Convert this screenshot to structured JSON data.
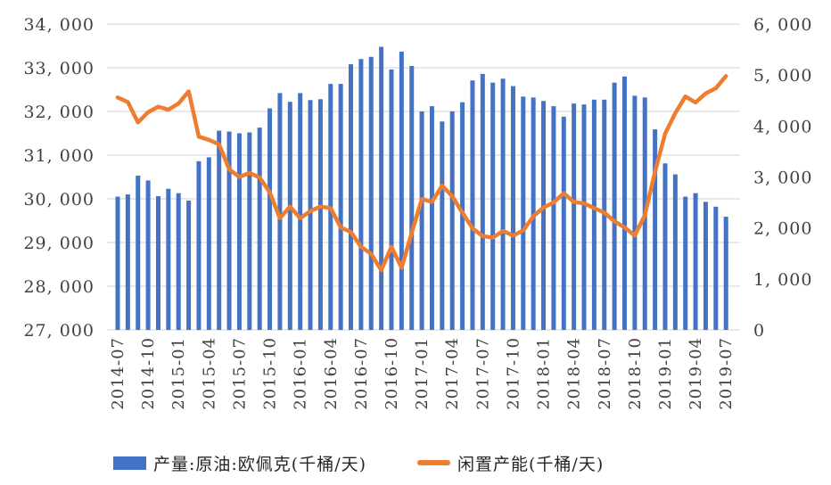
{
  "chart": {
    "colors": {
      "bar": "#4472C4",
      "line": "#ED7D31",
      "gridline": "#D9D9D9",
      "axis_text": "#404040"
    },
    "left_axis_tick_labels": [
      "34, 000",
      "33, 000",
      "32, 000",
      "31, 000",
      "30, 000",
      "29, 000",
      "28, 000",
      "27, 000"
    ],
    "right_axis_tick_labels": [
      "6, 000",
      "5, 000",
      "4, 000",
      "3, 000",
      "2, 000",
      "1, 000",
      "0"
    ],
    "x_axis_tick_labels": [
      "2014-07",
      "2014-10",
      "2015-01",
      "2015-04",
      "2015-07",
      "2015-10",
      "2016-01",
      "2016-04",
      "2016-07",
      "2016-10",
      "2017-01",
      "2017-04",
      "2017-07",
      "2017-10",
      "2018-01",
      "2018-04",
      "2018-07",
      "2018-10",
      "2019-01",
      "2019-04",
      "2019-07"
    ],
    "legend": {
      "items": [
        {
          "label": "产量:原油:欧佩克(千桶/天)",
          "color": "#4472C4",
          "marker": "bar-swatch"
        },
        {
          "label": "闲置产能(千桶/天)",
          "color": "#ED7D31",
          "marker": "line-swatch"
        }
      ]
    }
  },
  "chart_data": {
    "type": "bar",
    "title": "",
    "xlabel": "",
    "ylabel_left": "产量:原油:欧佩克(千桶/天)",
    "ylabel_right": "闲置产能(千桶/天)",
    "grid": "horizontal",
    "legend_position": "bottom",
    "x_tick_every": 3,
    "left_axis": {
      "min": 27000,
      "max": 34000,
      "step": 1000
    },
    "right_axis": {
      "min": 0,
      "max": 6000,
      "step": 1000
    },
    "categories": [
      "2014-07",
      "2014-08",
      "2014-09",
      "2014-10",
      "2014-11",
      "2014-12",
      "2015-01",
      "2015-02",
      "2015-03",
      "2015-04",
      "2015-05",
      "2015-06",
      "2015-07",
      "2015-08",
      "2015-09",
      "2015-10",
      "2015-11",
      "2015-12",
      "2016-01",
      "2016-02",
      "2016-03",
      "2016-04",
      "2016-05",
      "2016-06",
      "2016-07",
      "2016-08",
      "2016-09",
      "2016-10",
      "2016-11",
      "2016-12",
      "2017-01",
      "2017-02",
      "2017-03",
      "2017-04",
      "2017-05",
      "2017-06",
      "2017-07",
      "2017-08",
      "2017-09",
      "2017-10",
      "2017-11",
      "2017-12",
      "2018-01",
      "2018-02",
      "2018-03",
      "2018-04",
      "2018-05",
      "2018-06",
      "2018-07",
      "2018-08",
      "2018-09",
      "2018-10",
      "2018-11",
      "2018-12",
      "2019-01",
      "2019-02",
      "2019-03",
      "2019-04",
      "2019-05",
      "2019-06",
      "2019-07"
    ],
    "series": [
      {
        "name": "产量:原油:欧佩克(千桶/天)",
        "type": "bar",
        "y_axis": "left",
        "color": "#4472C4",
        "values": [
          30050,
          30100,
          30530,
          30420,
          30060,
          30230,
          30130,
          29960,
          30860,
          30950,
          31560,
          31540,
          31500,
          31520,
          31630,
          32070,
          32420,
          32220,
          32420,
          32260,
          32280,
          32630,
          32630,
          33080,
          33200,
          33250,
          33480,
          32960,
          33370,
          33040,
          32000,
          32120,
          31770,
          32000,
          32210,
          32710,
          32860,
          32660,
          32750,
          32580,
          32340,
          32320,
          32240,
          32120,
          31880,
          32180,
          32160,
          32270,
          32270,
          32660,
          32800,
          32360,
          32320,
          31590,
          30810,
          30560,
          30050,
          30130,
          29930,
          29820,
          29590
        ]
      },
      {
        "name": "闲置产能(千桶/天)",
        "type": "line",
        "y_axis": "right",
        "color": "#ED7D31",
        "values": [
          4560,
          4470,
          4070,
          4270,
          4380,
          4320,
          4440,
          4680,
          3790,
          3730,
          3640,
          3150,
          3000,
          3080,
          2990,
          2700,
          2190,
          2420,
          2190,
          2330,
          2420,
          2390,
          2010,
          1920,
          1630,
          1490,
          1170,
          1630,
          1220,
          1900,
          2570,
          2510,
          2830,
          2620,
          2300,
          1990,
          1840,
          1810,
          1940,
          1850,
          1950,
          2230,
          2400,
          2500,
          2680,
          2510,
          2480,
          2390,
          2300,
          2130,
          2010,
          1850,
          2250,
          3100,
          3850,
          4250,
          4580,
          4460,
          4640,
          4740,
          4980
        ]
      }
    ]
  }
}
